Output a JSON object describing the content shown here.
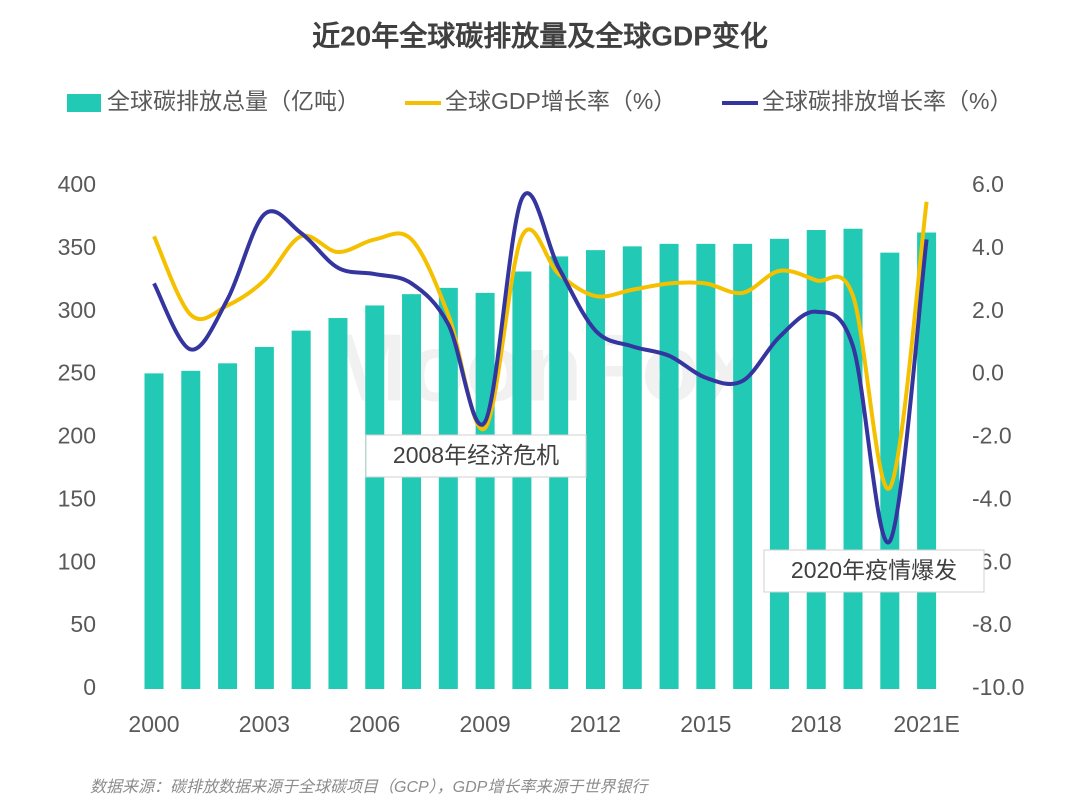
{
  "chart_data": {
    "type": "bar",
    "title": "近20年全球碳排放量及全球GDP变化",
    "categories": [
      "2000",
      null,
      null,
      "2003",
      null,
      null,
      "2006",
      null,
      null,
      "2009",
      null,
      null,
      "2012",
      null,
      null,
      "2015",
      null,
      null,
      "2018",
      null,
      null,
      "2021E"
    ],
    "series": [
      {
        "name": "全球碳排放总量（亿吨）",
        "type": "bar",
        "color": "#22cab5",
        "axis": "y",
        "values": [
          251,
          253,
          259,
          272,
          285,
          295,
          305,
          314,
          319,
          315,
          332,
          344,
          349,
          352,
          354,
          354,
          354,
          358,
          365,
          366,
          347,
          363
        ]
      },
      {
        "name": "全球GDP增长率（%）",
        "type": "line",
        "color": "#f5c000",
        "axis": "y2",
        "values": [
          4.4,
          1.9,
          2.2,
          3.0,
          4.4,
          3.9,
          4.3,
          4.3,
          1.9,
          -1.7,
          4.4,
          3.2,
          2.5,
          2.7,
          2.9,
          2.9,
          2.6,
          3.3,
          3.0,
          2.5,
          -3.6,
          5.5
        ]
      },
      {
        "name": "全球碳排放增长率（%）",
        "type": "line",
        "color": "#3535a0",
        "axis": "y2",
        "values": [
          2.9,
          0.8,
          2.4,
          5.1,
          4.5,
          3.4,
          3.2,
          2.9,
          1.6,
          -1.5,
          5.6,
          3.4,
          1.4,
          0.9,
          0.6,
          -0.1,
          -0.2,
          1.2,
          2.0,
          0.9,
          -5.3,
          4.3
        ]
      }
    ],
    "ylim": [
      0,
      400
    ],
    "yticks": [
      0,
      50,
      100,
      150,
      200,
      250,
      300,
      350,
      400
    ],
    "y2lim": [
      -10,
      6
    ],
    "y2ticks": [
      {
        "value": -10,
        "label": "-10.0"
      },
      {
        "value": -8,
        "label": "-8.0"
      },
      {
        "value": -6,
        "label": "-6.0"
      },
      {
        "value": -4,
        "label": "-4.0"
      },
      {
        "value": -2,
        "label": "-2.0"
      },
      {
        "value": 0,
        "label": "0.0"
      },
      {
        "value": 2,
        "label": "2.0"
      },
      {
        "value": 4,
        "label": "4.0"
      },
      {
        "value": 6,
        "label": "6.0"
      }
    ],
    "legend": "top",
    "annotations": [
      {
        "text": "2008年经济危机",
        "x": 8
      },
      {
        "text": "2020年疫情爆发",
        "x": 20
      }
    ],
    "watermark": "MoonFox",
    "source": "数据来源：碳排放数据来源于全球碳项目（GCP），GDP增长率来源于世界银行"
  }
}
